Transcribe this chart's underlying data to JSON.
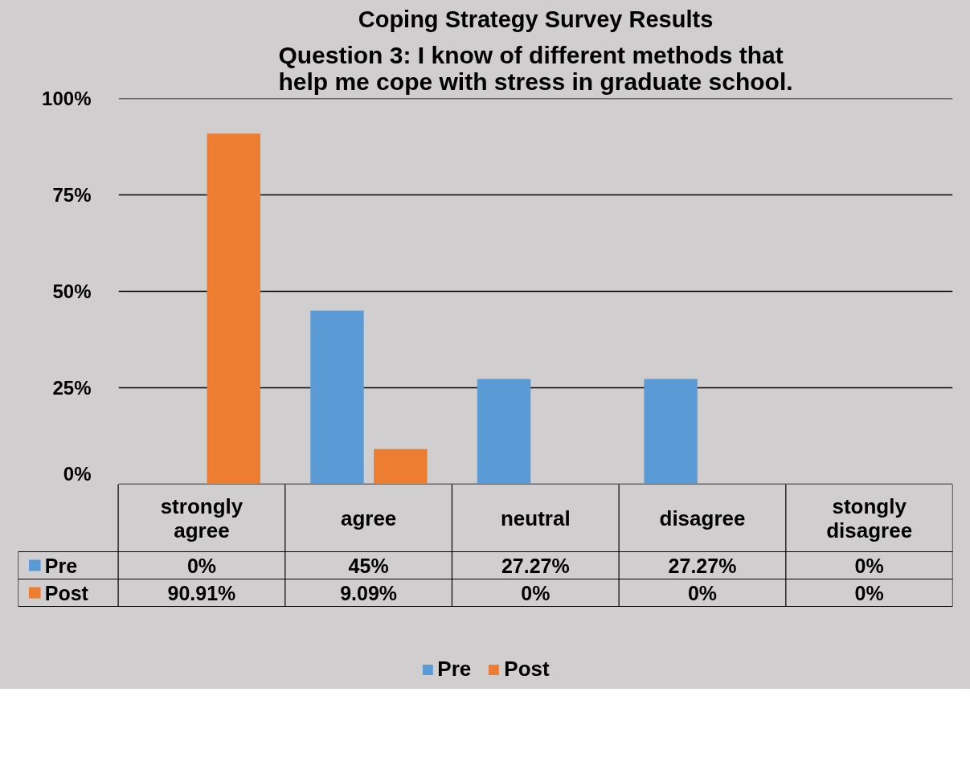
{
  "chart_data": {
    "type": "bar",
    "title": "Coping Strategy Survey Results",
    "subtitle": "Question 3: I know of different methods that\nhelp me cope with stress in graduate school.",
    "categories": [
      "strongly\nagree",
      "agree",
      "neutral",
      "disagree",
      "stongly\ndisagree"
    ],
    "series": [
      {
        "name": "Pre",
        "color": "#5b9bd5",
        "values": [
          0,
          45,
          27.27,
          27.27,
          0
        ],
        "value_labels": [
          "0%",
          "45%",
          "27.27%",
          "27.27%",
          "0%"
        ]
      },
      {
        "name": "Post",
        "color": "#ed7d31",
        "values": [
          90.91,
          9.09,
          0,
          0,
          0
        ],
        "value_labels": [
          "90.91%",
          "9.09%",
          "0%",
          "0%",
          "0%"
        ]
      }
    ],
    "ylim": [
      0,
      100
    ],
    "yticks": [
      {
        "value": 0,
        "label": "0%"
      },
      {
        "value": 25,
        "label": "25%"
      },
      {
        "value": 50,
        "label": "50%"
      },
      {
        "value": 75,
        "label": "75%"
      },
      {
        "value": 100,
        "label": "100%"
      }
    ],
    "grid": "y",
    "legend": "bottom"
  }
}
